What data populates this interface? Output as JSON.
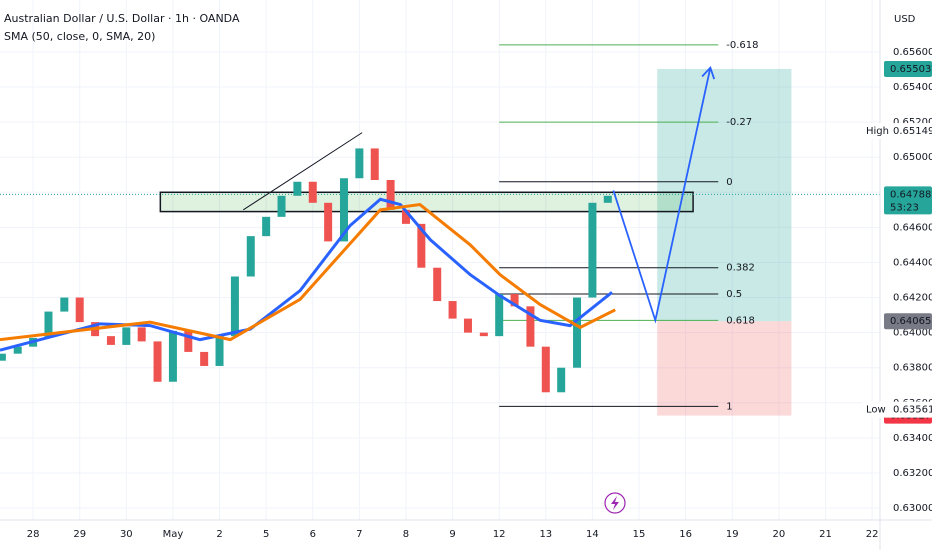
{
  "chart_data": {
    "type": "candlestick",
    "title": "Australian Dollar / U.S. Dollar · 1h · OANDA",
    "subtitle": "SMA (50, close, 0, SMA, 20)",
    "currency": "USD",
    "up_color": "#26a69a",
    "down_color": "#ef5350",
    "x": [
      -0.67,
      -0.33,
      0,
      0.33,
      0.67,
      1,
      1.33,
      1.67,
      2,
      2.33,
      2.67,
      3,
      3.33,
      3.67,
      4,
      4.33,
      4.67,
      5,
      5.33,
      5.67,
      6,
      6.33,
      6.67,
      7,
      7.33,
      7.67,
      8,
      8.33,
      8.67,
      9,
      9.33,
      9.67,
      10,
      10.33,
      10.67,
      11,
      11.33,
      11.67,
      12,
      12.33
    ],
    "open": [
      0.6384,
      0.6388,
      0.6392,
      0.6397,
      0.6412,
      0.642,
      0.6406,
      0.6398,
      0.6393,
      0.6403,
      0.6395,
      0.6372,
      0.6401,
      0.6389,
      0.6381,
      0.6398,
      0.6432,
      0.6455,
      0.6466,
      0.6478,
      0.6486,
      0.6474,
      0.6452,
      0.6488,
      0.6505,
      0.6487,
      0.647,
      0.6462,
      0.6437,
      0.6418,
      0.6408,
      0.64,
      0.6398,
      0.6422,
      0.6415,
      0.6392,
      0.6366,
      0.638,
      0.642,
      0.6474
    ],
    "high": {
      "label": "High",
      "value": 0.65149
    },
    "low": {
      "label": "Low",
      "value": 0.63561
    },
    "close": [
      0.6388,
      0.6392,
      0.6397,
      0.6412,
      0.642,
      0.6406,
      0.6398,
      0.6393,
      0.6403,
      0.6395,
      0.6372,
      0.6401,
      0.6389,
      0.6381,
      0.6398,
      0.6432,
      0.6455,
      0.6466,
      0.6478,
      0.6486,
      0.6474,
      0.6452,
      0.6488,
      0.6505,
      0.6487,
      0.647,
      0.6462,
      0.6437,
      0.6418,
      0.6408,
      0.64,
      0.6398,
      0.6422,
      0.6415,
      0.6392,
      0.6366,
      0.638,
      0.642,
      0.6474,
      0.6478
    ],
    "lines": [
      {
        "color": "#2962ff",
        "x": [
          -0.71,
          1.44,
          2.51,
          3.58,
          4.66,
          5.73,
          6.8,
          7.45,
          7.88,
          8.52,
          9.38,
          10.02,
          10.88,
          11.52,
          12.42
        ],
        "values": [
          0.639,
          0.6405,
          0.6404,
          0.6396,
          0.6402,
          0.6424,
          0.6461,
          0.6476,
          0.6473,
          0.6453,
          0.6433,
          0.6421,
          0.6407,
          0.6404,
          0.6423
        ]
      },
      {
        "color": "#f57c00",
        "x": [
          -0.71,
          2.51,
          4.23,
          5.73,
          7.45,
          8.3,
          9.38,
          10.02,
          10.88,
          11.74,
          12.49
        ],
        "values": [
          0.6396,
          0.6406,
          0.6396,
          0.6419,
          0.647,
          0.6473,
          0.645,
          0.6433,
          0.6416,
          0.6403,
          0.6413
        ]
      }
    ],
    "zone": {
      "x": [
        2.73,
        14.16
      ],
      "y": [
        0.6469,
        0.648
      ]
    },
    "trendline": {
      "x": [
        4.51,
        7.06
      ],
      "values": [
        0.647,
        0.6514
      ]
    },
    "projection": {
      "x": [
        12.45,
        13.35,
        14.53
      ],
      "values": [
        0.6481,
        0.6407,
        0.6551
      ]
    },
    "fib": {
      "x": [
        10.0,
        14.7
      ],
      "levels": [
        {
          "label": "-0.618",
          "value": 0.6564,
          "color": "#4caf50"
        },
        {
          "label": "-0.27",
          "value": 0.652,
          "color": "#4caf50"
        },
        {
          "label": "0",
          "value": 0.6486,
          "color": "#131722"
        },
        {
          "label": "0.382",
          "value": 0.6437,
          "color": "#131722"
        },
        {
          "label": "0.5",
          "value": 0.6422,
          "color": "#131722"
        },
        {
          "label": "0.618",
          "value": 0.6407,
          "color": "#4caf50"
        },
        {
          "label": "1",
          "value": 0.6358,
          "color": "#131722"
        }
      ]
    },
    "position": {
      "x": [
        13.39,
        16.27
      ],
      "entry": 0.64065,
      "target": 0.65503,
      "stop": 0.63527
    },
    "last_price": 0.64788,
    "countdown": "53:23",
    "xlim": [
      -0.71,
      18.17
    ],
    "ylim": [
      0.62932,
      0.65896
    ],
    "yticks": [
      {
        "value": 0.63,
        "label": "0.63000"
      },
      {
        "value": 0.632,
        "label": "0.63200"
      },
      {
        "value": 0.634,
        "label": "0.63400"
      },
      {
        "value": 0.636,
        "label": "0.63600"
      },
      {
        "value": 0.638,
        "label": "0.63800"
      },
      {
        "value": 0.64,
        "label": "0.64000"
      },
      {
        "value": 0.642,
        "label": "0.64200"
      },
      {
        "value": 0.644,
        "label": "0.64400"
      },
      {
        "value": 0.646,
        "label": "0.64600"
      },
      {
        "value": 0.648,
        "label": "0.64800"
      },
      {
        "value": 0.65,
        "label": "0.65000"
      },
      {
        "value": 0.652,
        "label": "0.65200"
      },
      {
        "value": 0.654,
        "label": "0.65400"
      },
      {
        "value": 0.656,
        "label": "0.65600"
      }
    ],
    "xticks": [
      {
        "value": 0,
        "label": "28"
      },
      {
        "value": 1,
        "label": "29"
      },
      {
        "value": 2,
        "label": "30"
      },
      {
        "value": 3,
        "label": "May"
      },
      {
        "value": 4,
        "label": "2"
      },
      {
        "value": 5,
        "label": "5"
      },
      {
        "value": 6,
        "label": "6"
      },
      {
        "value": 7,
        "label": "7"
      },
      {
        "value": 8,
        "label": "8"
      },
      {
        "value": 9,
        "label": "9"
      },
      {
        "value": 10,
        "label": "12"
      },
      {
        "value": 11,
        "label": "13"
      },
      {
        "value": 12,
        "label": "14"
      },
      {
        "value": 13,
        "label": "15"
      },
      {
        "value": 14,
        "label": "16"
      },
      {
        "value": 15,
        "label": "19"
      },
      {
        "value": 16,
        "label": "20"
      },
      {
        "value": 17,
        "label": "21"
      },
      {
        "value": 18,
        "label": "22"
      }
    ],
    "grid": true
  }
}
